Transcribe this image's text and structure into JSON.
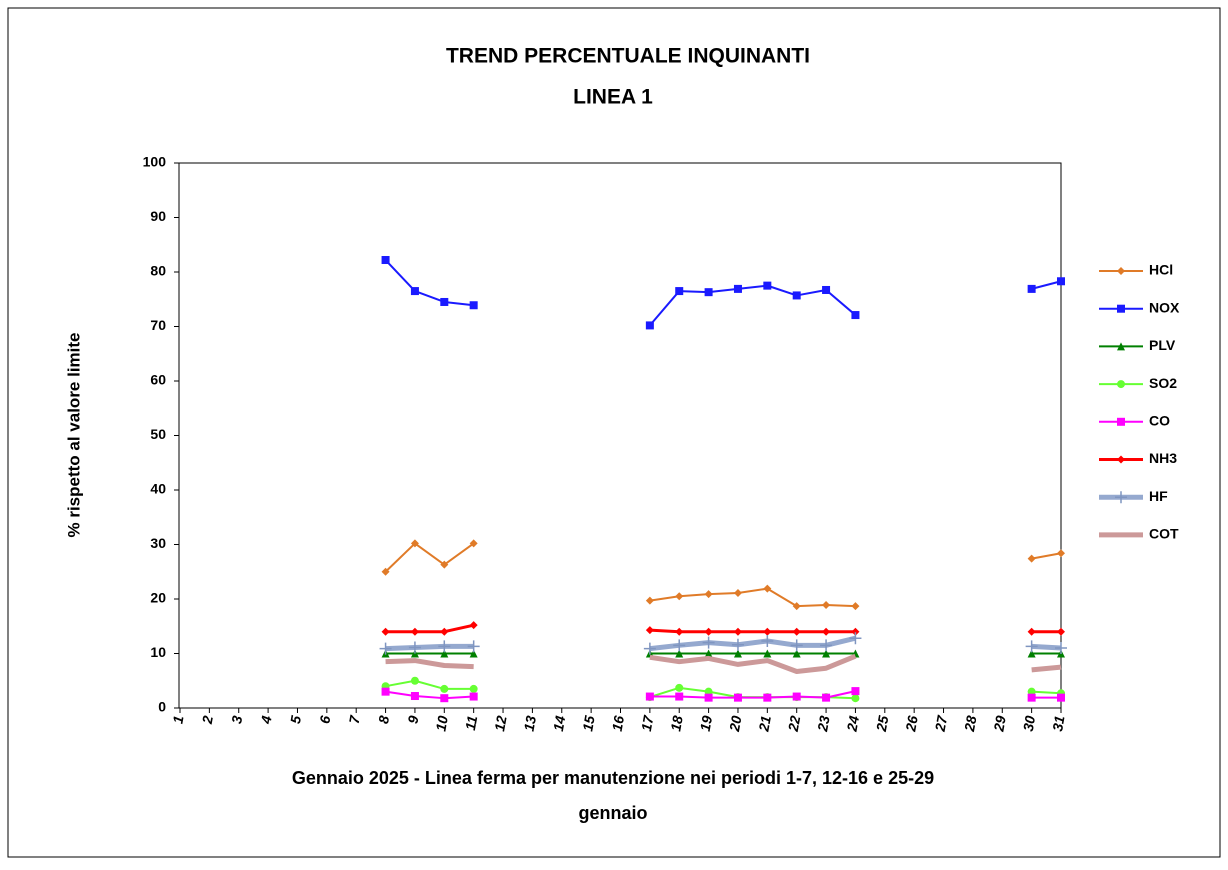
{
  "chart_data": {
    "type": "line",
    "title": "TREND PERCENTUALE  INQUINANTI",
    "subtitle": "LINEA 1",
    "y_label": "% rispetto al valore limite",
    "x_label": [
      "Gennaio 2025 - Linea ferma per manutenzione nei periodi 1-7, 12-16 e 25-29",
      "gennaio"
    ],
    "categories": [
      "1",
      "2",
      "3",
      "4",
      "5",
      "6",
      "7",
      "8",
      "9",
      "10",
      "11",
      "12",
      "13",
      "14",
      "15",
      "16",
      "17",
      "18",
      "19",
      "20",
      "21",
      "22",
      "23",
      "24",
      "25",
      "26",
      "27",
      "28",
      "29",
      "30",
      "31"
    ],
    "ylim": [
      0,
      100
    ],
    "yticks": [
      0,
      10,
      20,
      30,
      40,
      50,
      60,
      70,
      80,
      90,
      100
    ],
    "grid": false,
    "legend": "right",
    "series": [
      {
        "name": "HCl",
        "color": "#e07b28",
        "marker": "diamond",
        "width": 2,
        "values": [
          null,
          null,
          null,
          null,
          null,
          null,
          null,
          25,
          30.2,
          26.3,
          30.2,
          null,
          null,
          null,
          null,
          null,
          19.7,
          20.5,
          20.9,
          21.1,
          21.9,
          18.7,
          18.9,
          18.7,
          null,
          null,
          null,
          null,
          null,
          27.4,
          28.4
        ]
      },
      {
        "name": "NOX",
        "color": "#1a1aff",
        "marker": "square",
        "width": 2,
        "values": [
          null,
          null,
          null,
          null,
          null,
          null,
          null,
          82.2,
          76.5,
          74.5,
          73.9,
          null,
          null,
          null,
          null,
          null,
          70.2,
          76.5,
          76.3,
          76.9,
          77.5,
          75.7,
          76.7,
          72.1,
          null,
          null,
          null,
          null,
          null,
          76.9,
          78.3
        ]
      },
      {
        "name": "PLV",
        "color": "#008000",
        "marker": "triangle",
        "width": 2,
        "values": [
          null,
          null,
          null,
          null,
          null,
          null,
          null,
          10,
          10,
          10,
          10,
          null,
          null,
          null,
          null,
          null,
          10,
          10,
          10,
          10,
          10,
          10,
          10,
          10,
          null,
          null,
          null,
          null,
          null,
          10,
          10
        ]
      },
      {
        "name": "SO2",
        "color": "#66ff33",
        "marker": "circle",
        "width": 2,
        "values": [
          null,
          null,
          null,
          null,
          null,
          null,
          null,
          4,
          5,
          3.5,
          3.5,
          null,
          null,
          null,
          null,
          null,
          2,
          3.7,
          3,
          2,
          2,
          2,
          2,
          1.8,
          null,
          null,
          null,
          null,
          null,
          3,
          2.7
        ]
      },
      {
        "name": "CO",
        "color": "#ff00ff",
        "marker": "square",
        "width": 2,
        "values": [
          null,
          null,
          null,
          null,
          null,
          null,
          null,
          3,
          2.2,
          1.8,
          2.1,
          null,
          null,
          null,
          null,
          null,
          2.1,
          2.1,
          1.9,
          1.9,
          1.9,
          2.1,
          1.9,
          3.1,
          null,
          null,
          null,
          null,
          null,
          1.9,
          1.9
        ]
      },
      {
        "name": "NH3",
        "color": "#ff0000",
        "marker": "diamond",
        "width": 3,
        "values": [
          null,
          null,
          null,
          null,
          null,
          null,
          null,
          14,
          14,
          14,
          15.2,
          null,
          null,
          null,
          null,
          null,
          14.3,
          14,
          14,
          14,
          14,
          14,
          14,
          14,
          null,
          null,
          null,
          null,
          null,
          14,
          14
        ]
      },
      {
        "name": "HF",
        "color": "#95a9cf",
        "marker": "plus",
        "width": 5,
        "values": [
          null,
          null,
          null,
          null,
          null,
          null,
          null,
          10.9,
          11.1,
          11.3,
          11.3,
          null,
          null,
          null,
          null,
          null,
          10.9,
          11.5,
          12,
          11.6,
          12.3,
          11.5,
          11.5,
          12.8,
          null,
          null,
          null,
          null,
          null,
          11.3,
          11
        ]
      },
      {
        "name": "COT",
        "color": "#cc9999",
        "marker": "none",
        "width": 5,
        "values": [
          null,
          null,
          null,
          null,
          null,
          null,
          null,
          8.5,
          8.7,
          7.8,
          7.6,
          null,
          null,
          null,
          null,
          null,
          9.3,
          8.5,
          9.1,
          8,
          8.7,
          6.7,
          7.3,
          9.5,
          null,
          null,
          null,
          null,
          null,
          7,
          7.5
        ]
      }
    ]
  }
}
